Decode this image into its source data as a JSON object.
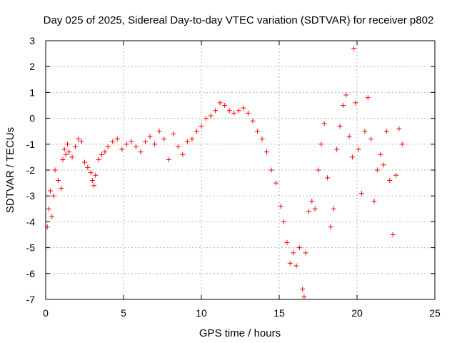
{
  "chart_data": {
    "type": "scatter",
    "title": "Day 025 of 2025, Sidereal Day-to-day VTEC variation (SDTVAR) for receiver p802",
    "xlabel": "GPS time / hours",
    "ylabel": "SDTVAR / TECUs",
    "xlim": [
      0,
      25
    ],
    "ylim": [
      -7,
      3
    ],
    "xticks": [
      0,
      5,
      10,
      15,
      20,
      25
    ],
    "yticks": [
      -7,
      -6,
      -5,
      -4,
      -3,
      -2,
      -1,
      0,
      1,
      2,
      3
    ],
    "grid": true,
    "marker": "+",
    "marker_color": "#ff0000",
    "series": [
      {
        "name": "SDTVAR",
        "x": [
          0.1,
          0.2,
          0.3,
          0.4,
          0.5,
          0.6,
          0.8,
          1.0,
          1.1,
          1.2,
          1.3,
          1.4,
          1.5,
          1.7,
          1.9,
          2.1,
          2.3,
          2.5,
          2.7,
          2.9,
          3.0,
          3.1,
          3.2,
          3.4,
          3.6,
          3.8,
          4.0,
          4.3,
          4.6,
          4.9,
          5.2,
          5.5,
          5.8,
          6.1,
          6.4,
          6.7,
          7.0,
          7.3,
          7.6,
          7.9,
          8.2,
          8.5,
          8.8,
          9.1,
          9.4,
          9.7,
          10.0,
          10.3,
          10.6,
          10.9,
          11.2,
          11.5,
          11.8,
          12.1,
          12.4,
          12.7,
          13.0,
          13.3,
          13.6,
          13.9,
          14.2,
          14.5,
          14.8,
          15.1,
          15.3,
          15.5,
          15.7,
          15.9,
          16.1,
          16.3,
          16.5,
          16.6,
          16.7,
          16.9,
          17.1,
          17.3,
          17.5,
          17.7,
          17.9,
          18.1,
          18.3,
          18.5,
          18.7,
          18.9,
          19.1,
          19.3,
          19.5,
          19.7,
          19.8,
          19.9,
          20.1,
          20.3,
          20.5,
          20.7,
          20.9,
          21.1,
          21.3,
          21.5,
          21.7,
          21.9,
          22.1,
          22.3,
          22.5,
          22.7,
          22.9
        ],
        "y": [
          -4.2,
          -3.5,
          -2.8,
          -3.8,
          -3.0,
          -2.0,
          -2.4,
          -2.7,
          -1.6,
          -1.2,
          -1.4,
          -1.0,
          -1.3,
          -1.5,
          -1.1,
          -0.8,
          -0.9,
          -1.7,
          -1.9,
          -2.1,
          -2.4,
          -2.6,
          -2.2,
          -1.6,
          -1.4,
          -1.3,
          -1.1,
          -0.9,
          -0.8,
          -1.2,
          -1.0,
          -0.9,
          -1.1,
          -1.3,
          -0.9,
          -0.7,
          -1.0,
          -0.5,
          -0.8,
          -1.6,
          -0.6,
          -1.1,
          -1.4,
          -0.9,
          -0.8,
          -0.5,
          -0.3,
          0.0,
          0.1,
          0.3,
          0.6,
          0.5,
          0.3,
          0.2,
          0.3,
          0.4,
          0.2,
          -0.1,
          -0.5,
          -0.8,
          -1.3,
          -2.0,
          -2.5,
          -3.4,
          -4.0,
          -4.8,
          -5.6,
          -5.2,
          -5.7,
          -5.0,
          -6.6,
          -6.9,
          -5.2,
          -3.6,
          -3.2,
          -3.5,
          -2.0,
          -1.0,
          -0.2,
          -2.3,
          -4.2,
          -3.5,
          -1.2,
          -0.3,
          0.5,
          0.9,
          -0.7,
          -1.5,
          2.7,
          0.6,
          -1.2,
          -2.9,
          -0.5,
          0.8,
          -0.8,
          -3.2,
          -2.0,
          -1.4,
          -1.8,
          -0.5,
          -2.4,
          -4.5,
          -2.2,
          -0.4,
          -1.0
        ]
      }
    ]
  }
}
